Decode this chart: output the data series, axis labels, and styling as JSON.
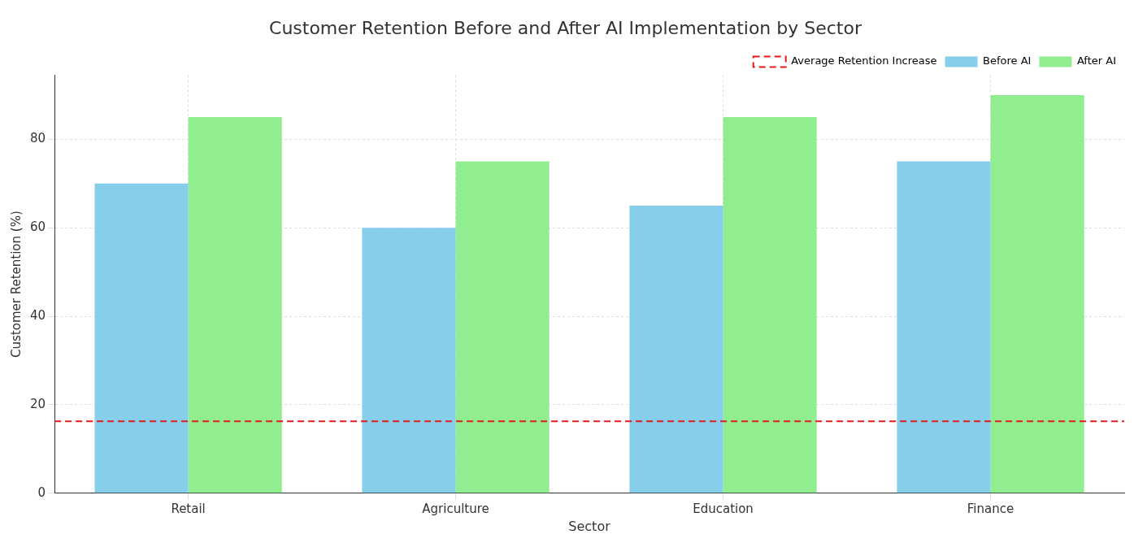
{
  "chart_data": {
    "type": "bar",
    "title": "Customer Retention Before and After AI Implementation by Sector",
    "xlabel": "Sector",
    "ylabel": "Customer Retention (%)",
    "categories": [
      "Retail",
      "Agriculture",
      "Education",
      "Finance"
    ],
    "series": [
      {
        "name": "Before AI",
        "color": "#87ceeb",
        "values": [
          70,
          60,
          65,
          75
        ]
      },
      {
        "name": "After AI",
        "color": "#90ee90",
        "values": [
          85,
          75,
          85,
          90
        ]
      }
    ],
    "ylim": [
      0,
      94.5
    ],
    "yticks": [
      0,
      20,
      40,
      60,
      80
    ],
    "ref_lines": [
      {
        "axis": "y",
        "value": 16.25,
        "label": "Average Retention Increase",
        "color": "#e41a1c",
        "line_style": "dashed"
      }
    ],
    "grid": true,
    "legend": "top right"
  }
}
